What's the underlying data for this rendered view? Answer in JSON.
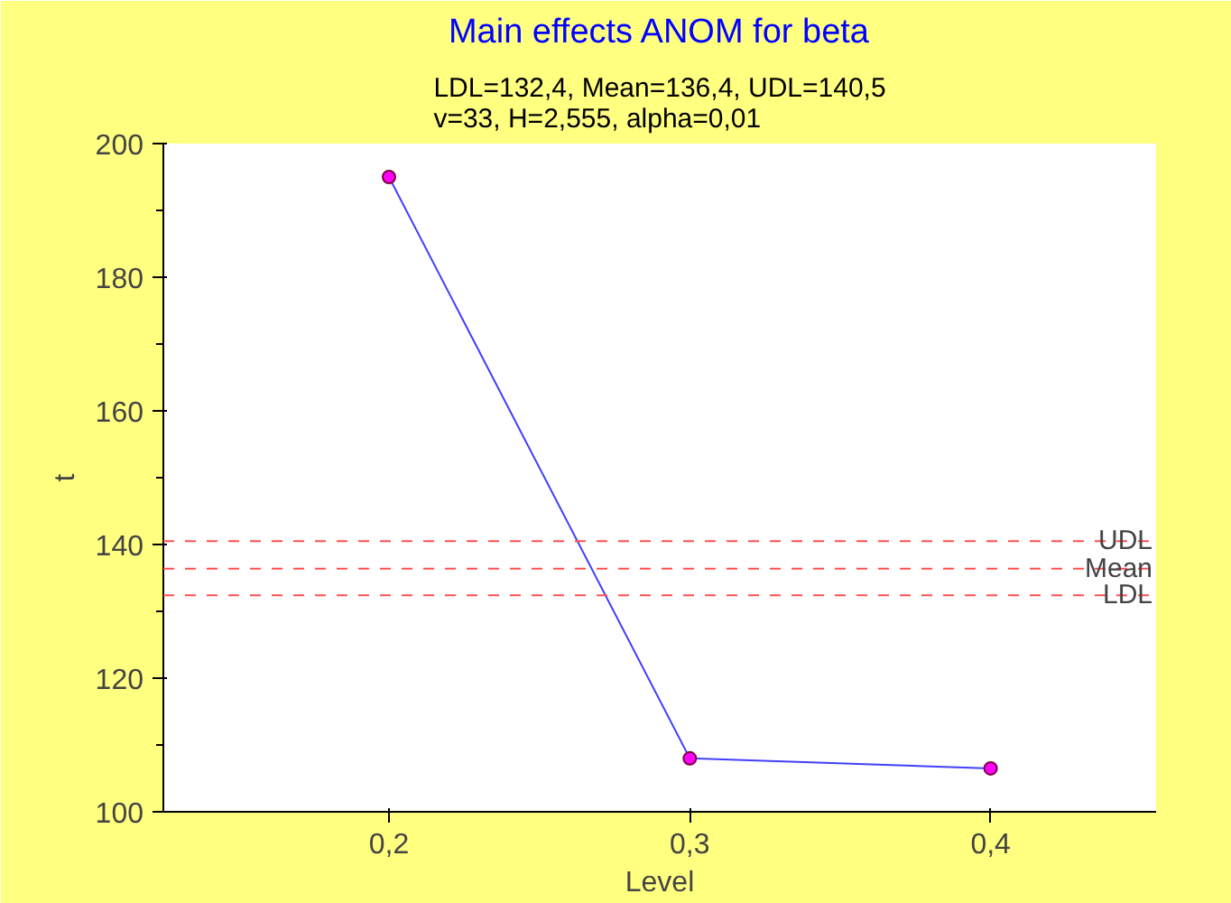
{
  "chart_data": {
    "type": "line",
    "title": "Main effects ANOM for beta",
    "subtitle": "LDL=132,4, Mean=136,4, UDL=140,5\nv=33, H=2,555, alpha=0,01",
    "xlabel": "Level",
    "ylabel": "t",
    "x": [
      0.2,
      0.3,
      0.4
    ],
    "series": [
      {
        "color": "#4040ff",
        "values": [
          195,
          108,
          106.5
        ]
      }
    ],
    "marker": "circle",
    "line_style": "solid",
    "grid": false,
    "xlim": [
      0.125,
      0.455
    ],
    "xticks": [
      {
        "value": 0.2,
        "label": "0,2"
      },
      {
        "value": 0.3,
        "label": "0,3"
      },
      {
        "value": 0.4,
        "label": "0,4"
      }
    ],
    "ylim": [
      100,
      200
    ],
    "yticks": [
      100,
      120,
      140,
      160,
      180,
      200
    ],
    "ref_lines": [
      {
        "axis": "y",
        "value": 140.5,
        "label": "UDL",
        "color": "#ff5050",
        "line_style": "dashed"
      },
      {
        "axis": "y",
        "value": 136.4,
        "label": "Mean",
        "color": "#ff5050",
        "line_style": "dashed"
      },
      {
        "axis": "y",
        "value": 132.4,
        "label": "LDL",
        "color": "#ff5050",
        "line_style": "dashed"
      }
    ]
  }
}
